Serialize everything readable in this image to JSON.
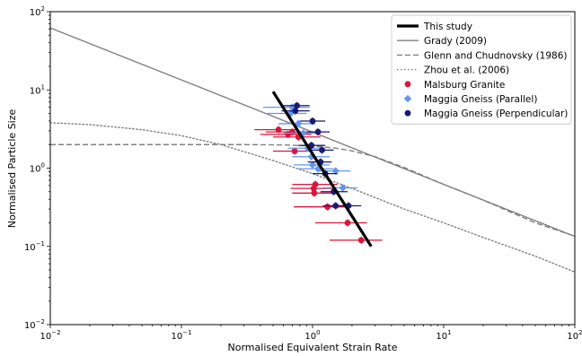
{
  "chart_data": {
    "type": "scatter",
    "xlabel": "Normalised Equivalent Strain Rate",
    "ylabel": "Normalised Particle Size",
    "xscale": "log",
    "yscale": "log",
    "xlim": [
      0.01,
      100
    ],
    "ylim": [
      0.01,
      100
    ],
    "x_tick_labels": [
      {
        "value": 0.01,
        "base": "10",
        "exp": "−2"
      },
      {
        "value": 0.1,
        "base": "10",
        "exp": "−1"
      },
      {
        "value": 1,
        "base": "10",
        "exp": "0"
      },
      {
        "value": 10,
        "base": "10",
        "exp": "1"
      },
      {
        "value": 100,
        "base": "10",
        "exp": "2"
      }
    ],
    "y_tick_labels": [
      {
        "value": 0.01,
        "base": "10",
        "exp": "−2"
      },
      {
        "value": 0.1,
        "base": "10",
        "exp": "−1"
      },
      {
        "value": 1,
        "base": "10",
        "exp": "0"
      },
      {
        "value": 10,
        "base": "10",
        "exp": "1"
      },
      {
        "value": 100,
        "base": "10",
        "exp": "2"
      }
    ],
    "grid": false,
    "legend_position": "top-right",
    "lines": [
      {
        "name": "This study",
        "color": "#000000",
        "style": "solid",
        "width": 3.2,
        "points": [
          [
            0.5,
            9.5
          ],
          [
            2.8,
            0.1
          ]
        ]
      },
      {
        "name": "Grady (2009)",
        "color": "#808080",
        "style": "solid",
        "width": 1.4,
        "points": [
          [
            0.01,
            62
          ],
          [
            0.1,
            13.4
          ],
          [
            1,
            2.89
          ],
          [
            10,
            0.62
          ],
          [
            100,
            0.134
          ]
        ]
      },
      {
        "name": "Glenn and Chudnovsky (1986)",
        "color": "#808080",
        "style": "dashed",
        "width": 1.4,
        "points": [
          [
            0.01,
            2.0
          ],
          [
            0.1,
            2.0
          ],
          [
            0.3,
            2.0
          ],
          [
            0.6,
            1.98
          ],
          [
            1,
            1.92
          ],
          [
            1.5,
            1.8
          ],
          [
            2,
            1.66
          ],
          [
            3,
            1.4
          ],
          [
            5,
            1.02
          ],
          [
            10,
            0.62
          ],
          [
            20,
            0.39
          ],
          [
            50,
            0.2
          ],
          [
            100,
            0.135
          ]
        ]
      },
      {
        "name": "Zhou et al. (2006)",
        "color": "#808080",
        "style": "dotted",
        "width": 1.4,
        "points": [
          [
            0.01,
            3.8
          ],
          [
            0.02,
            3.6
          ],
          [
            0.05,
            3.1
          ],
          [
            0.1,
            2.6
          ],
          [
            0.2,
            2.0
          ],
          [
            0.5,
            1.25
          ],
          [
            1,
            0.85
          ],
          [
            2,
            0.55
          ],
          [
            5,
            0.3
          ],
          [
            10,
            0.2
          ],
          [
            20,
            0.13
          ],
          [
            50,
            0.075
          ],
          [
            100,
            0.047
          ]
        ]
      }
    ],
    "series": [
      {
        "name": "Malsburg Granite",
        "color": "#dc143c",
        "marker": "circle",
        "points": [
          {
            "x": 0.55,
            "y": 3.1,
            "xlo": 0.36,
            "xhi": 0.78
          },
          {
            "x": 0.7,
            "y": 2.9,
            "xlo": 0.44,
            "xhi": 1.05
          },
          {
            "x": 0.65,
            "y": 2.7,
            "xlo": 0.4,
            "xhi": 0.98
          },
          {
            "x": 0.78,
            "y": 2.5,
            "xlo": 0.5,
            "xhi": 1.15
          },
          {
            "x": 0.73,
            "y": 1.65,
            "xlo": 0.5,
            "xhi": 1.0
          },
          {
            "x": 1.05,
            "y": 0.62,
            "xlo": 0.7,
            "xhi": 1.55
          },
          {
            "x": 1.02,
            "y": 0.55,
            "xlo": 0.68,
            "xhi": 1.5
          },
          {
            "x": 1.03,
            "y": 0.48,
            "xlo": 0.7,
            "xhi": 1.45
          },
          {
            "x": 1.3,
            "y": 0.32,
            "xlo": 0.72,
            "xhi": 1.9
          },
          {
            "x": 1.85,
            "y": 0.2,
            "xlo": 1.05,
            "xhi": 2.6
          },
          {
            "x": 2.35,
            "y": 0.12,
            "xlo": 1.35,
            "xhi": 3.4
          }
        ]
      },
      {
        "name": "Maggia Gneiss (Parallel)",
        "color": "#6495ed",
        "marker": "diamond",
        "points": [
          {
            "x": 0.7,
            "y": 6.0,
            "xlo": 0.42,
            "xhi": 0.95
          },
          {
            "x": 0.68,
            "y": 5.0,
            "xlo": 0.45,
            "xhi": 0.9
          },
          {
            "x": 0.78,
            "y": 3.7,
            "xlo": 0.55,
            "xhi": 1.05
          },
          {
            "x": 0.85,
            "y": 2.8,
            "xlo": 0.6,
            "xhi": 1.15
          },
          {
            "x": 0.92,
            "y": 1.8,
            "xlo": 0.65,
            "xhi": 1.25
          },
          {
            "x": 0.98,
            "y": 1.4,
            "xlo": 0.7,
            "xhi": 1.35
          },
          {
            "x": 1.0,
            "y": 1.1,
            "xlo": 0.72,
            "xhi": 1.35
          },
          {
            "x": 1.1,
            "y": 0.98,
            "xlo": 0.78,
            "xhi": 1.45
          },
          {
            "x": 1.5,
            "y": 0.92,
            "xlo": 1.1,
            "xhi": 1.95
          },
          {
            "x": 1.7,
            "y": 0.56,
            "xlo": 1.2,
            "xhi": 2.2
          }
        ]
      },
      {
        "name": "Maggia Gneiss (Perpendicular)",
        "color": "#191970",
        "marker": "circle",
        "points": [
          {
            "x": 0.76,
            "y": 6.3,
            "xlo": 0.6,
            "xhi": 0.95
          },
          {
            "x": 0.74,
            "y": 5.4,
            "xlo": 0.58,
            "xhi": 0.95
          },
          {
            "x": 1.0,
            "y": 4.0,
            "xlo": 0.8,
            "xhi": 1.25
          },
          {
            "x": 1.1,
            "y": 2.9,
            "xlo": 0.9,
            "xhi": 1.35
          },
          {
            "x": 0.98,
            "y": 1.95,
            "xlo": 0.78,
            "xhi": 1.25
          },
          {
            "x": 1.18,
            "y": 1.7,
            "xlo": 0.95,
            "xhi": 1.45
          },
          {
            "x": 1.15,
            "y": 1.2,
            "xlo": 0.92,
            "xhi": 1.4
          },
          {
            "x": 1.25,
            "y": 0.85,
            "xlo": 1.0,
            "xhi": 1.55
          },
          {
            "x": 1.45,
            "y": 0.5,
            "xlo": 1.15,
            "xhi": 1.85
          },
          {
            "x": 1.5,
            "y": 0.33,
            "xlo": 1.2,
            "xhi": 1.9
          },
          {
            "x": 1.88,
            "y": 0.33,
            "xlo": 1.5,
            "xhi": 2.35
          }
        ]
      }
    ]
  }
}
